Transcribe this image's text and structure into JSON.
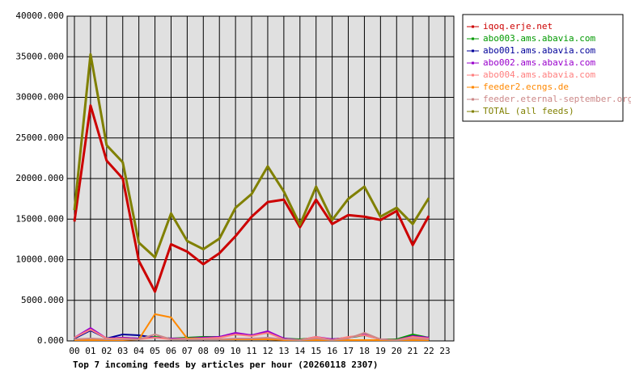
{
  "chart_data": {
    "type": "line",
    "title": "Top 7 incoming feeds by articles per hour (20260118 2307)",
    "categories": [
      "00",
      "01",
      "02",
      "03",
      "04",
      "05",
      "06",
      "07",
      "08",
      "09",
      "10",
      "11",
      "12",
      "13",
      "14",
      "15",
      "16",
      "17",
      "18",
      "19",
      "20",
      "21",
      "22",
      "23"
    ],
    "ylim": [
      0,
      40000
    ],
    "yticks": [
      {
        "value": 0,
        "label": "0.000"
      },
      {
        "value": 5000,
        "label": "5000.000"
      },
      {
        "value": 10000,
        "label": "10000.000"
      },
      {
        "value": 15000,
        "label": "15000.000"
      },
      {
        "value": 20000,
        "label": "20000.000"
      },
      {
        "value": 25000,
        "label": "25000.000"
      },
      {
        "value": 30000,
        "label": "30000.000"
      },
      {
        "value": 35000,
        "label": "35000.000"
      },
      {
        "value": 40000,
        "label": "40000.000"
      }
    ],
    "grid": true,
    "legend": "right",
    "series": [
      {
        "name": "iqoq.erje.net",
        "color": "#cc0000",
        "values": [
          14700,
          29000,
          22200,
          20000,
          9850,
          6070,
          11900,
          11000,
          9450,
          10800,
          12900,
          15300,
          17100,
          17400,
          14000,
          17400,
          14400,
          15500,
          15300,
          14900,
          16000,
          11800,
          15400,
          null
        ]
      },
      {
        "name": "abo003.ams.abavia.com",
        "color": "#009900",
        "values": [
          300,
          1400,
          300,
          400,
          300,
          500,
          300,
          400,
          500,
          500,
          800,
          700,
          1000,
          300,
          200,
          400,
          200,
          400,
          700,
          200,
          200,
          800,
          400,
          null
        ]
      },
      {
        "name": "abo001.ams.abavia.com",
        "color": "#000099",
        "values": [
          300,
          1300,
          300,
          800,
          700,
          400,
          300,
          300,
          400,
          500,
          900,
          700,
          1100,
          300,
          100,
          400,
          200,
          400,
          800,
          200,
          100,
          600,
          400,
          null
        ]
      },
      {
        "name": "abo002.ams.abavia.com",
        "color": "#9900cc",
        "values": [
          400,
          1600,
          300,
          400,
          300,
          400,
          300,
          300,
          400,
          500,
          1000,
          700,
          1200,
          300,
          100,
          500,
          200,
          400,
          800,
          200,
          100,
          600,
          400,
          null
        ]
      },
      {
        "name": "abo004.ams.abavia.com",
        "color": "#ff7f7f",
        "values": [
          400,
          1400,
          300,
          300,
          200,
          400,
          200,
          300,
          300,
          400,
          800,
          600,
          1000,
          200,
          100,
          500,
          100,
          500,
          700,
          200,
          100,
          500,
          300,
          null
        ]
      },
      {
        "name": "feeder2.ecngs.de",
        "color": "#ff8800",
        "values": [
          100,
          100,
          100,
          100,
          200,
          3300,
          2900,
          300,
          200,
          200,
          200,
          200,
          200,
          100,
          100,
          100,
          100,
          100,
          100,
          100,
          100,
          100,
          100,
          null
        ]
      },
      {
        "name": "feeder.eternal-september.org",
        "color": "#cc8888",
        "values": [
          200,
          300,
          200,
          200,
          200,
          800,
          200,
          200,
          200,
          200,
          300,
          300,
          400,
          200,
          100,
          300,
          100,
          300,
          1000,
          200,
          100,
          300,
          200,
          null
        ]
      },
      {
        "name": "TOTAL (all feeds)",
        "color": "#808000",
        "values": [
          16100,
          35300,
          24100,
          22000,
          12100,
          10300,
          15700,
          12300,
          11300,
          12600,
          16400,
          18100,
          21500,
          18400,
          14300,
          19000,
          14900,
          17500,
          19000,
          15300,
          16400,
          14400,
          17600,
          null
        ]
      }
    ]
  }
}
